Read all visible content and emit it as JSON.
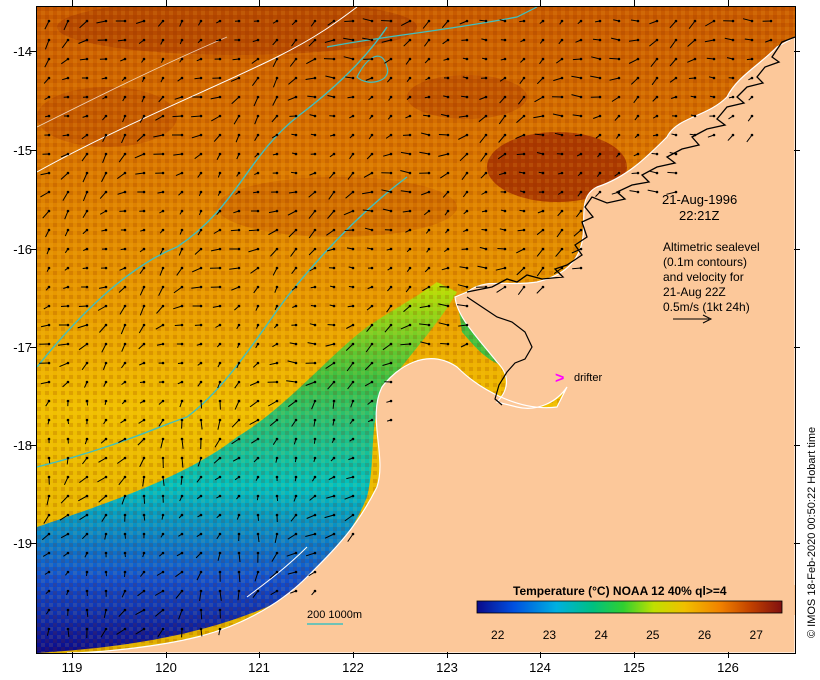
{
  "map": {
    "latitude_labels": [
      "-14",
      "-15",
      "-16",
      "-17",
      "-18",
      "-19"
    ],
    "longitude_labels": [
      "119",
      "120",
      "121",
      "122",
      "123",
      "124",
      "125",
      "126"
    ],
    "lat_range": [
      -20.1,
      -13.5
    ],
    "lon_range": [
      118.6,
      126.7
    ]
  },
  "annotation": {
    "date": "21-Aug-1996",
    "time": "22:21Z",
    "legend_lines": [
      "Altimetric sealevel",
      "(0.1m contours)",
      "and velocity for",
      "21-Aug 22Z",
      "0.5m/s (1kt 24h)"
    ],
    "drifter_label": "drifter",
    "drifter_marker": ">",
    "drifter_color": "#ff00ff"
  },
  "isobath_legend": {
    "text": "200  1000m",
    "color": "#40c0c0"
  },
  "colorbar": {
    "title": "Temperature (°C) NOAA 12 40% ql>=4",
    "ticks": [
      "22",
      "23",
      "24",
      "25",
      "26",
      "27"
    ],
    "tick_values": [
      22,
      23,
      24,
      25,
      26,
      27
    ],
    "range": [
      21.6,
      27.5
    ],
    "colors": [
      "#0a0a8a",
      "#0050e0",
      "#00b0e0",
      "#00c080",
      "#30d030",
      "#c0e000",
      "#f0c000",
      "#f08000",
      "#c04000",
      "#801010"
    ]
  },
  "credit": "© IMOS 18-Feb-2020 00:50:22 Hobart time",
  "palette": {
    "land": "#fcc89a",
    "warm": "#d97400",
    "hot": "#a83000",
    "mid": "#e8a000",
    "cool_green": "#40c040",
    "cool_blue": "#1050d0",
    "deep_blue": "#0a0a8a"
  }
}
